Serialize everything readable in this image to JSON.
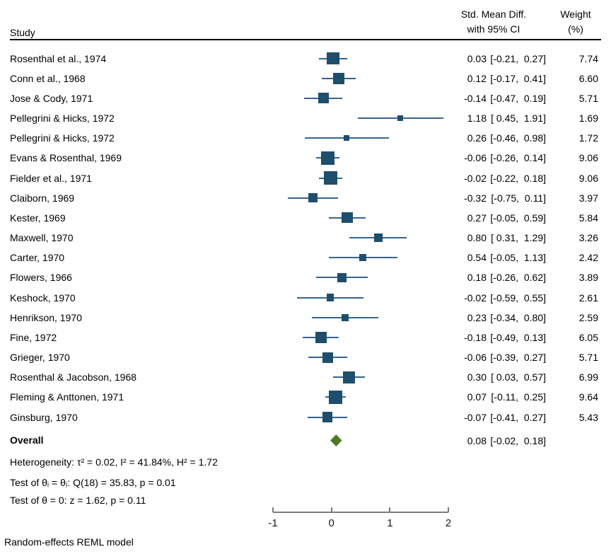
{
  "columns": {
    "study": "Study",
    "effect_line1": "Std. Mean Diff.",
    "effect_line2": "with 95% CI",
    "weight_line1": "Weight",
    "weight_line2": "(%)"
  },
  "chart_data": {
    "type": "forest",
    "x_axis": {
      "ticks": [
        -1,
        0,
        1,
        2
      ],
      "range": [
        -1,
        2
      ]
    },
    "effect_measure": "Std. Mean Diff. with 95% CI",
    "studies": [
      {
        "name": "Rosenthal et al., 1974",
        "est": 0.03,
        "lo": -0.21,
        "hi": 0.27,
        "est_text": "0.03",
        "ci_text": "[-0.21,  0.27]",
        "weight": "7.74"
      },
      {
        "name": "Conn et al., 1968",
        "est": 0.12,
        "lo": -0.17,
        "hi": 0.41,
        "est_text": "0.12",
        "ci_text": "[-0.17,  0.41]",
        "weight": "6.60"
      },
      {
        "name": "Jose & Cody, 1971",
        "est": -0.14,
        "lo": -0.47,
        "hi": 0.19,
        "est_text": "-0.14",
        "ci_text": "[-0.47,  0.19]",
        "weight": "5.71"
      },
      {
        "name": "Pellegrini & Hicks, 1972",
        "est": 1.18,
        "lo": 0.45,
        "hi": 1.91,
        "est_text": "1.18",
        "ci_text": "[ 0.45,  1.91]",
        "weight": "1.69"
      },
      {
        "name": "Pellegrini & Hicks, 1972",
        "est": 0.26,
        "lo": -0.46,
        "hi": 0.98,
        "est_text": "0.26",
        "ci_text": "[-0.46,  0.98]",
        "weight": "1.72"
      },
      {
        "name": "Evans & Rosenthal, 1969",
        "est": -0.06,
        "lo": -0.26,
        "hi": 0.14,
        "est_text": "-0.06",
        "ci_text": "[-0.26,  0.14]",
        "weight": "9.06"
      },
      {
        "name": "Fielder et al., 1971",
        "est": -0.02,
        "lo": -0.22,
        "hi": 0.18,
        "est_text": "-0.02",
        "ci_text": "[-0.22,  0.18]",
        "weight": "9.06"
      },
      {
        "name": "Claiborn, 1969",
        "est": -0.32,
        "lo": -0.75,
        "hi": 0.11,
        "est_text": "-0.32",
        "ci_text": "[-0.75,  0.11]",
        "weight": "3.97"
      },
      {
        "name": "Kester, 1969",
        "est": 0.27,
        "lo": -0.05,
        "hi": 0.59,
        "est_text": "0.27",
        "ci_text": "[-0.05,  0.59]",
        "weight": "5.84"
      },
      {
        "name": "Maxwell, 1970",
        "est": 0.8,
        "lo": 0.31,
        "hi": 1.29,
        "est_text": "0.80",
        "ci_text": "[ 0.31,  1.29]",
        "weight": "3.26"
      },
      {
        "name": "Carter, 1970",
        "est": 0.54,
        "lo": -0.05,
        "hi": 1.13,
        "est_text": "0.54",
        "ci_text": "[-0.05,  1.13]",
        "weight": "2.42"
      },
      {
        "name": "Flowers, 1966",
        "est": 0.18,
        "lo": -0.26,
        "hi": 0.62,
        "est_text": "0.18",
        "ci_text": "[-0.26,  0.62]",
        "weight": "3.89"
      },
      {
        "name": "Keshock, 1970",
        "est": -0.02,
        "lo": -0.59,
        "hi": 0.55,
        "est_text": "-0.02",
        "ci_text": "[-0.59,  0.55]",
        "weight": "2.61"
      },
      {
        "name": "Henrikson, 1970",
        "est": 0.23,
        "lo": -0.34,
        "hi": 0.8,
        "est_text": "0.23",
        "ci_text": "[-0.34,  0.80]",
        "weight": "2.59"
      },
      {
        "name": "Fine, 1972",
        "est": -0.18,
        "lo": -0.49,
        "hi": 0.13,
        "est_text": "-0.18",
        "ci_text": "[-0.49,  0.13]",
        "weight": "6.05"
      },
      {
        "name": "Grieger, 1970",
        "est": -0.06,
        "lo": -0.39,
        "hi": 0.27,
        "est_text": "-0.06",
        "ci_text": "[-0.39,  0.27]",
        "weight": "5.71"
      },
      {
        "name": "Rosenthal & Jacobson, 1968",
        "est": 0.3,
        "lo": 0.03,
        "hi": 0.57,
        "est_text": "0.30",
        "ci_text": "[ 0.03,  0.57]",
        "weight": "6.99"
      },
      {
        "name": "Fleming & Anttonen, 1971",
        "est": 0.07,
        "lo": -0.11,
        "hi": 0.25,
        "est_text": "0.07",
        "ci_text": "[-0.11,  0.25]",
        "weight": "9.64"
      },
      {
        "name": "Ginsburg, 1970",
        "est": -0.07,
        "lo": -0.41,
        "hi": 0.27,
        "est_text": "-0.07",
        "ci_text": "[-0.41,  0.27]",
        "weight": "5.43"
      }
    ],
    "overall": {
      "label": "Overall",
      "est": 0.08,
      "lo": -0.02,
      "hi": 0.18,
      "est_text": "0.08",
      "ci_text": "[-0.02,  0.18]"
    },
    "notes": [
      "Heterogeneity: τ² = 0.02, I² = 41.84%, H² = 1.72",
      "Test of θᵢ = θⱼ: Q(18) = 35.83, p = 0.01",
      "Test of θ = 0: z = 1.62, p = 0.11"
    ],
    "footer": "Random-effects REML model",
    "colors": {
      "square": "#1f4e6d",
      "ci_line": "#36648e",
      "diamond": "#4e7a28",
      "axis": "#7a7a7a",
      "text": "#000000"
    }
  }
}
